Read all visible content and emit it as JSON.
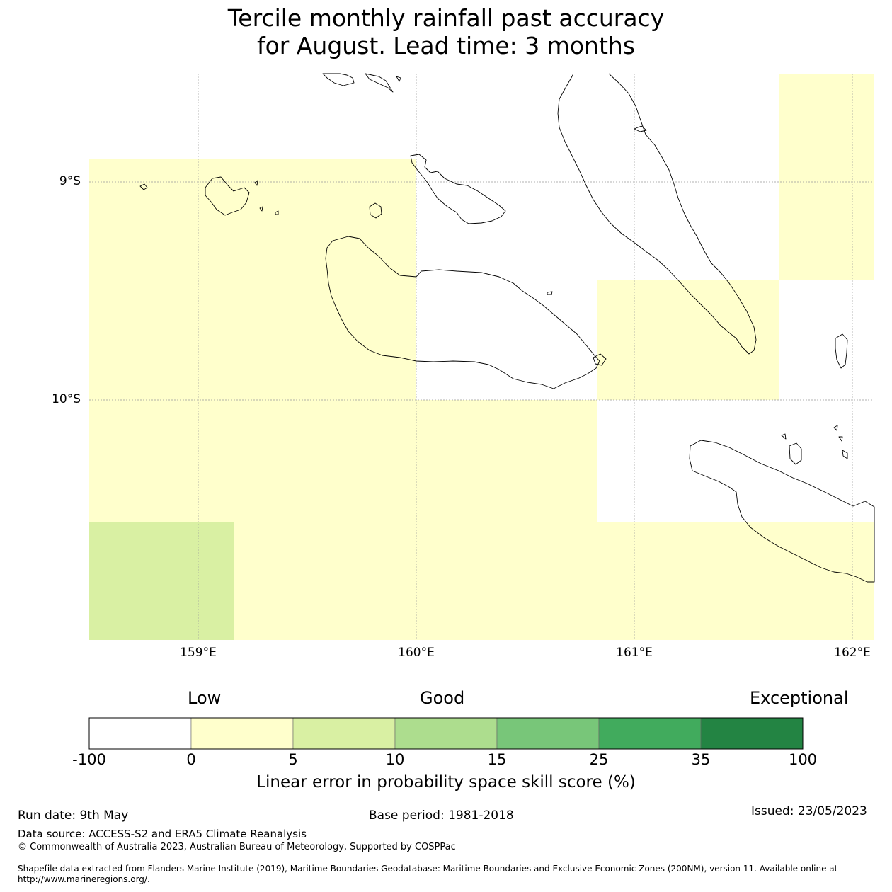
{
  "title": {
    "line1": "Tercile monthly rainfall past accuracy",
    "line2": "for August. Lead time: 3 months"
  },
  "map": {
    "latitude_labels": [
      "9°S",
      "10°S"
    ],
    "longitude_labels": [
      "159°E",
      "160°E",
      "161°E",
      "162°E"
    ],
    "extent": {
      "lon_min": 158.5,
      "lon_max": 162.1,
      "lat_max": -8.5,
      "lat_min": -11.1
    },
    "grid": true,
    "skill_cells": [
      {
        "lon": [
          158.5,
          160.0
        ],
        "lat": [
          -8.9,
          -10.0
        ],
        "class": "0-5"
      },
      {
        "lon": [
          160.83,
          161.67
        ],
        "lat": [
          -9.45,
          -10.0
        ],
        "class": "0-5"
      },
      {
        "lon": [
          161.67,
          162.1
        ],
        "lat": [
          -8.5,
          -9.45
        ],
        "class": "0-5"
      },
      {
        "lon": [
          158.5,
          160.83
        ],
        "lat": [
          -10.0,
          -10.56
        ],
        "class": "0-5"
      },
      {
        "lon": [
          159.17,
          162.1
        ],
        "lat": [
          -10.56,
          -11.1
        ],
        "class": "0-5"
      },
      {
        "lon": [
          160.83,
          162.1
        ],
        "lat": [
          -10.56,
          -10.56
        ],
        "class": "0-5"
      },
      {
        "lon": [
          158.5,
          159.17
        ],
        "lat": [
          -10.56,
          -11.1
        ],
        "class": "5-10"
      }
    ]
  },
  "colorbar": {
    "categories": [
      "Low",
      "Good",
      "Exceptional"
    ],
    "ticks": [
      "-100",
      "0",
      "5",
      "10",
      "15",
      "25",
      "35",
      "100"
    ],
    "colors": [
      "#ffffff",
      "#ffffcc",
      "#d9f0a3",
      "#addd8e",
      "#78c679",
      "#41ab5d",
      "#238443"
    ],
    "label": "Linear error in probability space skill score (%)"
  },
  "footer": {
    "run_date": "Run date: 9th May",
    "base_period": "Base period: 1981-2018",
    "issued": "Issued: 23/05/2023",
    "data_source": "Data source: ACCESS-S2 and ERA5 Climate Reanalysis",
    "copyright": "© Commonwealth of Australia 2023, Australian Bureau of Meteorology, Supported by COSPPac",
    "shapefile_line1": "Shapefile data extracted from Flanders Marine Institute (2019), Maritime Boundaries Geodatabase: Maritime Boundaries and Exclusive Economic Zones (200NM), version 11. Available online at",
    "shapefile_line2": "http://www.marineregions.org/."
  }
}
